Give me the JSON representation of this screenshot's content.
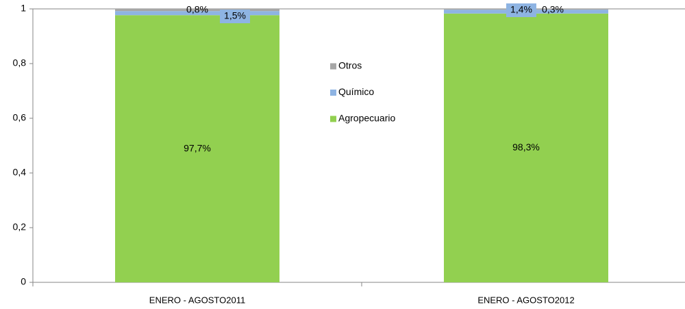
{
  "chart_data": {
    "type": "stacked_bar",
    "categories": [
      "ENERO - AGOSTO2011",
      "ENERO - AGOSTO2012"
    ],
    "series": [
      {
        "name": "Agropecuario",
        "color": "#92d050",
        "values": [
          0.977,
          0.983
        ],
        "value_labels": [
          "97,7%",
          "98,3%"
        ]
      },
      {
        "name": "Químico",
        "color": "#8eb4e3",
        "values": [
          0.015,
          0.014
        ],
        "value_labels": [
          "1,5%",
          "1,4%"
        ]
      },
      {
        "name": "Otros",
        "color": "#a6a6a6",
        "values": [
          0.008,
          0.003
        ],
        "value_labels": [
          "0,8%",
          "0,3%"
        ]
      }
    ],
    "ylim": [
      0,
      1
    ],
    "yticks": [
      0,
      {
        "value": 0.2,
        "label": "0,2"
      },
      {
        "value": 0.4,
        "label": "0,4"
      },
      {
        "value": 0.6,
        "label": "0,6"
      },
      {
        "value": 0.8,
        "label": "0,8"
      },
      1
    ],
    "legend": "center"
  }
}
